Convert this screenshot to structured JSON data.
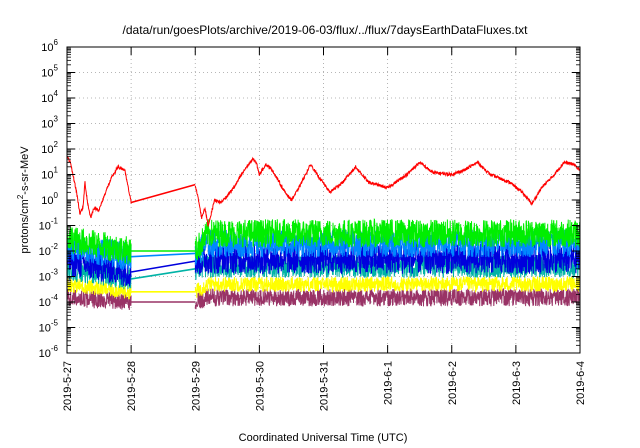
{
  "chart_data": {
    "type": "line",
    "title": "/data/run/goesPlots/archive/2019-06-03/flux/../flux/7daysEarthDataFluxes.txt",
    "xlabel": "Coordinated Universal Time (UTC)",
    "ylabel_main": "protons/cm",
    "ylabel_sup": "2",
    "ylabel_tail": "-s-sr-MeV",
    "yscale": "log",
    "ylim_exp": [
      -6,
      6
    ],
    "y_tick_exponents": [
      -6,
      -5,
      -4,
      -3,
      -2,
      -1,
      0,
      1,
      2,
      3,
      4,
      5,
      6
    ],
    "y_tick_base": "10",
    "x_ticks": [
      "2019-5-27",
      "2019-5-28",
      "2019-5-29",
      "2019-5-30",
      "2019-5-31",
      "2019-6-1",
      "2019-6-2",
      "2019-6-3",
      "2019-6-4"
    ],
    "xlim_days": [
      0,
      8
    ],
    "grid": true,
    "data_gap_days": [
      1.0,
      2.0
    ],
    "series": [
      {
        "color": "#ff0000",
        "points": [
          [
            0.0,
            50
          ],
          [
            0.05,
            30
          ],
          [
            0.1,
            8
          ],
          [
            0.15,
            2
          ],
          [
            0.2,
            0.3
          ],
          [
            0.25,
            0.5
          ],
          [
            0.28,
            5
          ],
          [
            0.32,
            0.8
          ],
          [
            0.37,
            0.2
          ],
          [
            0.42,
            0.5
          ],
          [
            0.5,
            0.4
          ],
          [
            0.6,
            2
          ],
          [
            0.7,
            8
          ],
          [
            0.8,
            20
          ],
          [
            0.9,
            15
          ],
          [
            1.0,
            0.8
          ],
          [
            2.0,
            4
          ],
          [
            2.05,
            1
          ],
          [
            2.1,
            0.2
          ],
          [
            2.15,
            0.5
          ],
          [
            2.2,
            0.1
          ],
          [
            2.25,
            0.3
          ],
          [
            2.3,
            1
          ],
          [
            2.4,
            0.8
          ],
          [
            2.5,
            1.5
          ],
          [
            2.6,
            3
          ],
          [
            2.7,
            8
          ],
          [
            2.8,
            20
          ],
          [
            2.9,
            40
          ],
          [
            2.95,
            30
          ],
          [
            3.0,
            10
          ],
          [
            3.1,
            25
          ],
          [
            3.2,
            15
          ],
          [
            3.4,
            2
          ],
          [
            3.5,
            1
          ],
          [
            3.6,
            2.5
          ],
          [
            3.8,
            25
          ],
          [
            3.9,
            10
          ],
          [
            4.1,
            2
          ],
          [
            4.3,
            5
          ],
          [
            4.5,
            20
          ],
          [
            4.7,
            5
          ],
          [
            5.0,
            3
          ],
          [
            5.3,
            10
          ],
          [
            5.5,
            30
          ],
          [
            5.7,
            12
          ],
          [
            6.0,
            10
          ],
          [
            6.2,
            15
          ],
          [
            6.4,
            30
          ],
          [
            6.6,
            10
          ],
          [
            6.9,
            5
          ],
          [
            7.1,
            2
          ],
          [
            7.25,
            0.7
          ],
          [
            7.4,
            3
          ],
          [
            7.6,
            10
          ],
          [
            7.75,
            30
          ],
          [
            7.9,
            25
          ],
          [
            8.0,
            15
          ]
        ]
      },
      {
        "color": "#00ee00",
        "points": [
          [
            0.0,
            0.03
          ],
          [
            1.0,
            0.01
          ],
          [
            2.0,
            0.01
          ],
          [
            2.2,
            0.05
          ],
          [
            4.0,
            0.05
          ],
          [
            6.0,
            0.05
          ],
          [
            8.0,
            0.05
          ]
        ]
      },
      {
        "color": "#0088ff",
        "points": [
          [
            0.0,
            0.015
          ],
          [
            1.0,
            0.006
          ],
          [
            2.0,
            0.008
          ],
          [
            2.2,
            0.02
          ],
          [
            4.0,
            0.02
          ],
          [
            6.0,
            0.02
          ],
          [
            8.0,
            0.02
          ]
        ]
      },
      {
        "color": "#0000dd",
        "points": [
          [
            0.0,
            0.004
          ],
          [
            1.0,
            0.0015
          ],
          [
            2.0,
            0.004
          ],
          [
            2.2,
            0.005
          ],
          [
            4.0,
            0.005
          ],
          [
            6.0,
            0.005
          ],
          [
            8.0,
            0.005
          ]
        ]
      },
      {
        "color": "#00b3a6",
        "points": [
          [
            0.0,
            0.002
          ],
          [
            1.0,
            0.0008
          ],
          [
            2.0,
            0.002
          ],
          [
            2.2,
            0.0025
          ],
          [
            4.0,
            0.0025
          ],
          [
            6.0,
            0.0025
          ],
          [
            8.0,
            0.0025
          ]
        ]
      },
      {
        "color": "#ffff00",
        "points": [
          [
            0.0,
            0.0005
          ],
          [
            1.0,
            0.00025
          ],
          [
            2.0,
            0.00025
          ],
          [
            2.2,
            0.0005
          ],
          [
            4.0,
            0.0005
          ],
          [
            6.0,
            0.0005
          ],
          [
            8.0,
            0.0005
          ]
        ]
      },
      {
        "color": "#993366",
        "points": [
          [
            0.0,
            0.00015
          ],
          [
            1.0,
            0.0001
          ],
          [
            2.0,
            0.0001
          ],
          [
            2.2,
            0.00015
          ],
          [
            4.0,
            0.00015
          ],
          [
            6.0,
            0.00015
          ],
          [
            8.0,
            0.00015
          ]
        ]
      }
    ]
  }
}
